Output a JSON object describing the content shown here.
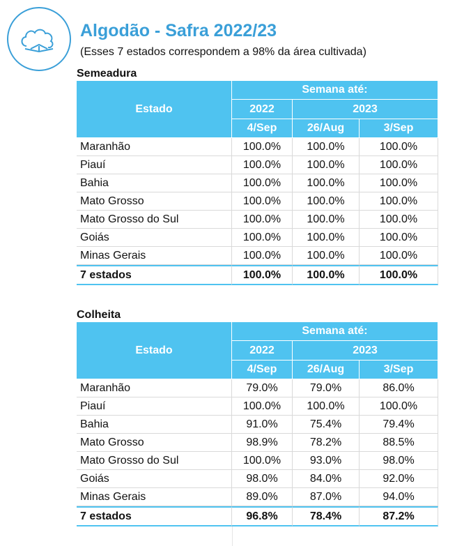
{
  "header": {
    "title": "Algodão - Safra 2022/23",
    "subtitle": "(Esses 7 estados correspondem a 98% da área cultivada)"
  },
  "tables": [
    {
      "title": "Semeadura",
      "columns": {
        "state": "Estado",
        "group": "Semana até:",
        "years": [
          "2022",
          "2023"
        ],
        "weeks": [
          "4/Sep",
          "26/Aug",
          "3/Sep"
        ]
      },
      "rows": [
        [
          "Maranhão",
          "100.0%",
          "100.0%",
          "100.0%"
        ],
        [
          "Piauí",
          "100.0%",
          "100.0%",
          "100.0%"
        ],
        [
          "Bahia",
          "100.0%",
          "100.0%",
          "100.0%"
        ],
        [
          "Mato Grosso",
          "100.0%",
          "100.0%",
          "100.0%"
        ],
        [
          "Mato Grosso do Sul",
          "100.0%",
          "100.0%",
          "100.0%"
        ],
        [
          "Goiás",
          "100.0%",
          "100.0%",
          "100.0%"
        ],
        [
          "Minas Gerais",
          "100.0%",
          "100.0%",
          "100.0%"
        ]
      ],
      "total": [
        "7 estados",
        "100.0%",
        "100.0%",
        "100.0%"
      ]
    },
    {
      "title": "Colheita",
      "columns": {
        "state": "Estado",
        "group": "Semana até:",
        "years": [
          "2022",
          "2023"
        ],
        "weeks": [
          "4/Sep",
          "26/Aug",
          "3/Sep"
        ]
      },
      "rows": [
        [
          "Maranhão",
          "79.0%",
          "79.0%",
          "86.0%"
        ],
        [
          "Piauí",
          "100.0%",
          "100.0%",
          "100.0%"
        ],
        [
          "Bahia",
          "91.0%",
          "75.4%",
          "79.4%"
        ],
        [
          "Mato Grosso",
          "98.9%",
          "78.2%",
          "88.5%"
        ],
        [
          "Mato Grosso do Sul",
          "100.0%",
          "93.0%",
          "98.0%"
        ],
        [
          "Goiás",
          "98.0%",
          "84.0%",
          "92.0%"
        ],
        [
          "Minas Gerais",
          "89.0%",
          "87.0%",
          "94.0%"
        ]
      ],
      "total": [
        "7 estados",
        "96.8%",
        "78.4%",
        "87.2%"
      ]
    }
  ]
}
